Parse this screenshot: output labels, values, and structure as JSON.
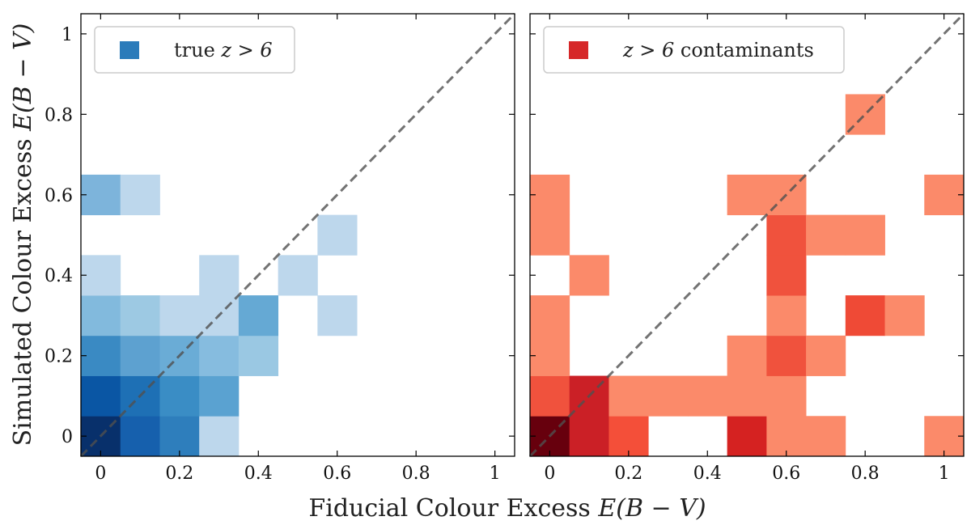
{
  "figure": {
    "xlabel_text": "Fiducial Colour Excess ",
    "ylabel_text": "Simulated Colour Excess ",
    "axis_symbol": "E(B − V)"
  },
  "chart_data": [
    {
      "type": "heatmap",
      "name": "true-z-gt-6",
      "legend": "true z > 6",
      "legend_prefix": "true ",
      "legend_math": "z > 6",
      "legend_suffix": "",
      "color_scale": "Blues",
      "swatch_color": "#2b7bba",
      "x_range": [
        -0.05,
        1.05
      ],
      "y_range": [
        -0.05,
        1.05
      ],
      "ticks": [
        0,
        0.2,
        0.4,
        0.6,
        0.8,
        1
      ],
      "tick_labels": [
        "0",
        "0.2",
        "0.4",
        "0.6",
        "0.8",
        "1"
      ],
      "bin_width": 0.1,
      "cells": [
        {
          "x": 0.0,
          "y": 0.0,
          "shade": 1.0,
          "color": "#08306b"
        },
        {
          "x": 0.1,
          "y": 0.0,
          "shade": 0.8,
          "color": "#1660ad"
        },
        {
          "x": 0.2,
          "y": 0.0,
          "shade": 0.65,
          "color": "#2e7ebc"
        },
        {
          "x": 0.3,
          "y": 0.0,
          "shade": 0.15,
          "color": "#bdd7ec"
        },
        {
          "x": 0.0,
          "y": 0.1,
          "shade": 0.85,
          "color": "#0a56a4"
        },
        {
          "x": 0.1,
          "y": 0.1,
          "shade": 0.72,
          "color": "#1e70b5"
        },
        {
          "x": 0.2,
          "y": 0.1,
          "shade": 0.6,
          "color": "#3a8dc5"
        },
        {
          "x": 0.3,
          "y": 0.1,
          "shade": 0.45,
          "color": "#5aa2d1"
        },
        {
          "x": 0.0,
          "y": 0.2,
          "shade": 0.6,
          "color": "#3a8ac3"
        },
        {
          "x": 0.1,
          "y": 0.2,
          "shade": 0.5,
          "color": "#5da1d0"
        },
        {
          "x": 0.2,
          "y": 0.2,
          "shade": 0.45,
          "color": "#6aacd6"
        },
        {
          "x": 0.3,
          "y": 0.2,
          "shade": 0.35,
          "color": "#86bcdf"
        },
        {
          "x": 0.4,
          "y": 0.2,
          "shade": 0.3,
          "color": "#9ac8e3"
        },
        {
          "x": 0.0,
          "y": 0.3,
          "shade": 0.4,
          "color": "#82badd"
        },
        {
          "x": 0.1,
          "y": 0.3,
          "shade": 0.32,
          "color": "#9dc9e3"
        },
        {
          "x": 0.2,
          "y": 0.3,
          "shade": 0.15,
          "color": "#bdd7ec"
        },
        {
          "x": 0.3,
          "y": 0.3,
          "shade": 0.15,
          "color": "#bdd7ec"
        },
        {
          "x": 0.4,
          "y": 0.3,
          "shade": 0.5,
          "color": "#65a9d4"
        },
        {
          "x": 0.6,
          "y": 0.3,
          "shade": 0.15,
          "color": "#bdd7ec"
        },
        {
          "x": 0.0,
          "y": 0.4,
          "shade": 0.15,
          "color": "#bdd7ec"
        },
        {
          "x": 0.3,
          "y": 0.4,
          "shade": 0.15,
          "color": "#bdd7ec"
        },
        {
          "x": 0.5,
          "y": 0.4,
          "shade": 0.15,
          "color": "#bdd7ec"
        },
        {
          "x": 0.6,
          "y": 0.5,
          "shade": 0.15,
          "color": "#bdd7ec"
        },
        {
          "x": 0.0,
          "y": 0.6,
          "shade": 0.4,
          "color": "#7db4db"
        },
        {
          "x": 0.1,
          "y": 0.6,
          "shade": 0.15,
          "color": "#bdd7ec"
        }
      ]
    },
    {
      "type": "heatmap",
      "name": "z-gt-6-contaminants",
      "legend": "z > 6 contaminants",
      "legend_prefix": "",
      "legend_math": "z > 6",
      "legend_suffix": " contaminants",
      "color_scale": "Reds",
      "swatch_color": "#d62728",
      "x_range": [
        -0.05,
        1.05
      ],
      "y_range": [
        -0.05,
        1.05
      ],
      "ticks": [
        0,
        0.2,
        0.4,
        0.6,
        0.8,
        1
      ],
      "tick_labels": [
        "0",
        "0.2",
        "0.4",
        "0.6",
        "0.8",
        "1"
      ],
      "bin_width": 0.1,
      "cells": [
        {
          "x": 0.0,
          "y": 0.0,
          "shade": 1.0,
          "color": "#67000d"
        },
        {
          "x": 0.1,
          "y": 0.0,
          "shade": 0.75,
          "color": "#cb2026"
        },
        {
          "x": 0.2,
          "y": 0.0,
          "shade": 0.45,
          "color": "#f44f39"
        },
        {
          "x": 0.5,
          "y": 0.0,
          "shade": 0.7,
          "color": "#d52221"
        },
        {
          "x": 0.6,
          "y": 0.0,
          "shade": 0.3,
          "color": "#fb8a6a"
        },
        {
          "x": 0.7,
          "y": 0.0,
          "shade": 0.3,
          "color": "#fb8a6a"
        },
        {
          "x": 1.0,
          "y": 0.0,
          "shade": 0.3,
          "color": "#fb8a6a"
        },
        {
          "x": 0.0,
          "y": 0.1,
          "shade": 0.45,
          "color": "#f0523d"
        },
        {
          "x": 0.1,
          "y": 0.1,
          "shade": 0.75,
          "color": "#cb2026"
        },
        {
          "x": 0.2,
          "y": 0.1,
          "shade": 0.3,
          "color": "#fb8a6a"
        },
        {
          "x": 0.3,
          "y": 0.1,
          "shade": 0.3,
          "color": "#fb8a6a"
        },
        {
          "x": 0.4,
          "y": 0.1,
          "shade": 0.3,
          "color": "#fb8a6a"
        },
        {
          "x": 0.5,
          "y": 0.1,
          "shade": 0.3,
          "color": "#fb8a6a"
        },
        {
          "x": 0.6,
          "y": 0.1,
          "shade": 0.3,
          "color": "#fb8a6a"
        },
        {
          "x": 0.0,
          "y": 0.2,
          "shade": 0.3,
          "color": "#fb8a6a"
        },
        {
          "x": 0.5,
          "y": 0.2,
          "shade": 0.3,
          "color": "#fb8a6a"
        },
        {
          "x": 0.6,
          "y": 0.2,
          "shade": 0.45,
          "color": "#f0523d"
        },
        {
          "x": 0.7,
          "y": 0.2,
          "shade": 0.3,
          "color": "#fb8a6a"
        },
        {
          "x": 0.0,
          "y": 0.3,
          "shade": 0.3,
          "color": "#fb8a6a"
        },
        {
          "x": 0.6,
          "y": 0.3,
          "shade": 0.3,
          "color": "#fb8a6a"
        },
        {
          "x": 0.8,
          "y": 0.3,
          "shade": 0.5,
          "color": "#ef4a36"
        },
        {
          "x": 0.9,
          "y": 0.3,
          "shade": 0.3,
          "color": "#fb8a6a"
        },
        {
          "x": 0.1,
          "y": 0.4,
          "shade": 0.3,
          "color": "#fb8a6a"
        },
        {
          "x": 0.6,
          "y": 0.4,
          "shade": 0.45,
          "color": "#f0523d"
        },
        {
          "x": 0.0,
          "y": 0.5,
          "shade": 0.3,
          "color": "#fb8a6a"
        },
        {
          "x": 0.6,
          "y": 0.5,
          "shade": 0.45,
          "color": "#f0523d"
        },
        {
          "x": 0.7,
          "y": 0.5,
          "shade": 0.3,
          "color": "#fb8a6a"
        },
        {
          "x": 0.8,
          "y": 0.5,
          "shade": 0.3,
          "color": "#fb8a6a"
        },
        {
          "x": 0.0,
          "y": 0.6,
          "shade": 0.3,
          "color": "#fb8a6a"
        },
        {
          "x": 0.5,
          "y": 0.6,
          "shade": 0.3,
          "color": "#fb8a6a"
        },
        {
          "x": 0.6,
          "y": 0.6,
          "shade": 0.3,
          "color": "#fb8a6a"
        },
        {
          "x": 1.0,
          "y": 0.6,
          "shade": 0.3,
          "color": "#fb8a6a"
        },
        {
          "x": 0.8,
          "y": 0.8,
          "shade": 0.3,
          "color": "#fb8a6a"
        }
      ]
    }
  ]
}
